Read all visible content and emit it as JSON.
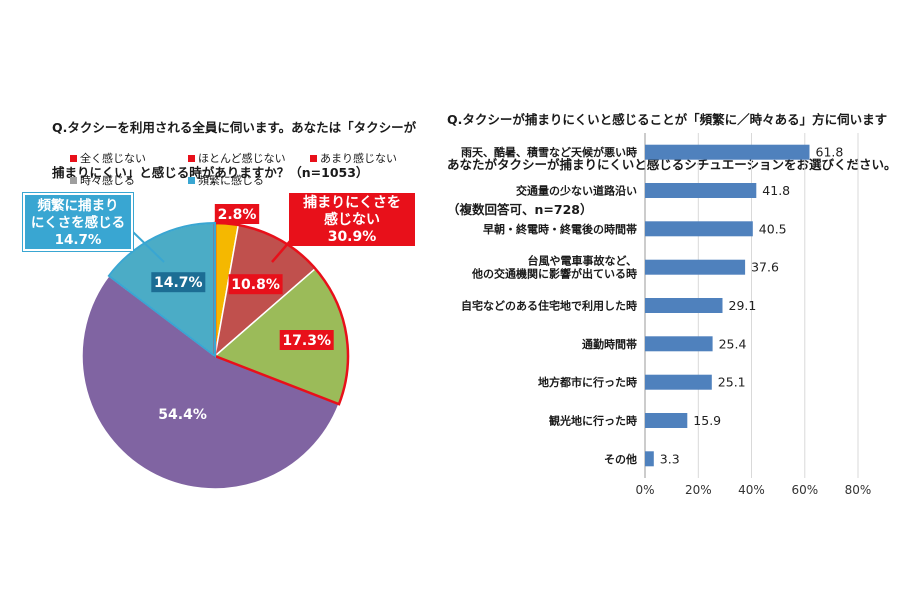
{
  "left_chart": {
    "title_lines": [
      "Q.タクシーを利用される全員に伺います。あなたは「タクシーが",
      "捕まりにくい」と感じる時がありますか？（n=1053）"
    ],
    "legend": [
      {
        "label": "全く感じない",
        "color": "#e8101a"
      },
      {
        "label": "ほとんど感じない",
        "color": "#e8101a"
      },
      {
        "label": "あまり感じない",
        "color": "#e8101a"
      },
      {
        "label": "時々感じる",
        "color": "#9e9e9e"
      },
      {
        "label": "頻繁に感じる",
        "color": "#39a6d2"
      }
    ],
    "callout_red_lines": [
      "捕まりにくさを",
      "感じない",
      "30.9%"
    ],
    "callout_blue_lines": [
      "頻繁に捕まり",
      "にくさを感じる",
      "14.7%"
    ]
  },
  "right_chart": {
    "title_lines": [
      "Q.タクシーが捕まりにくいと感じることが「頻繁に／時々ある」方に伺います",
      "あなたがタクシーが捕まりにくいと感じるシチュエーションをお選びください。",
      "（複数回答可、n=728）"
    ]
  },
  "chart_data": [
    {
      "type": "pie",
      "title": "Q.タクシーを利用される全員に伺います。あなたは「タクシーが捕まりにくい」と感じる時がありますか？（n=1053）",
      "slices": [
        {
          "label": "全く感じない",
          "value": 2.8,
          "color": "#f5b800",
          "value_label": "2.8%"
        },
        {
          "label": "ほとんど感じない",
          "value": 10.8,
          "color": "#c0504d",
          "value_label": "10.8%"
        },
        {
          "label": "あまり感じない",
          "value": 17.3,
          "color": "#9bbb59",
          "value_label": "17.3%"
        },
        {
          "label": "時々感じる",
          "value": 54.4,
          "color": "#8064a2",
          "value_label": "54.4%"
        },
        {
          "label": "頻繁に感じる",
          "value": 14.7,
          "color": "#4bacc6",
          "value_label": "14.7%"
        }
      ],
      "legend_placement": "top"
    },
    {
      "type": "bar",
      "orientation": "horizontal",
      "title": "Q.タクシーが捕まりにくいと感じることが「頻繁に／時々ある」方に伺います あなたがタクシーが捕まりにくいと感じるシチュエーションをお選びください。（複数回答可、n=728）",
      "categories": [
        [
          "雨天、酷暑、積雪など天候が悪い時"
        ],
        [
          "交通量の少ない道路沿い"
        ],
        [
          "早朝・終電時・終電後の時間帯"
        ],
        [
          "台風や電車事故など、",
          "他の交通機関に影響が出ている時"
        ],
        [
          "自宅などのある住宅地で利用した時"
        ],
        [
          "通勤時間帯"
        ],
        [
          "地方都市に行った時"
        ],
        [
          "観光地に行った時"
        ],
        [
          "その他"
        ]
      ],
      "values": [
        61.8,
        41.8,
        40.5,
        37.6,
        29.1,
        25.4,
        25.1,
        15.9,
        3.3
      ],
      "value_labels": [
        "61.8",
        "41.8",
        "40.5",
        "37.6",
        "29.1",
        "25.4",
        "25.1",
        "15.9",
        "3.3"
      ],
      "xlim": [
        0,
        80
      ],
      "xticks": [
        "0%",
        "20%",
        "40%",
        "60%",
        "80%"
      ],
      "grid": true,
      "bar_color": "#4f81bd"
    }
  ]
}
